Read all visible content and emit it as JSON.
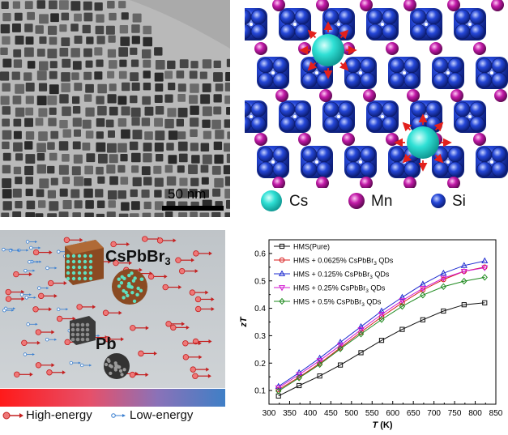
{
  "panel_a": {
    "scale_bar_label": "50 nm"
  },
  "panel_b": {
    "legend": [
      {
        "label": "Cs",
        "color": "#29d7cf"
      },
      {
        "label": "Mn",
        "color": "#c21aa8"
      },
      {
        "label": "Si",
        "color": "#2547d8"
      }
    ]
  },
  "panel_c": {
    "compound_label": "CsPbBr",
    "compound_subscript": "3",
    "element_label": "Pb",
    "legend_high": "High-energy",
    "legend_low": "Low-energy",
    "colors": {
      "high": "#e8262a",
      "low": "#3a7fd0",
      "bar_left": "#ff1a1a",
      "bar_right": "#3f7fc6"
    }
  },
  "chart_data": {
    "type": "line",
    "title": "",
    "xlabel_italic": "T",
    "xlabel_unit": " (K)",
    "ylabel_italic": "zT",
    "xlim": [
      300,
      850
    ],
    "ylim": [
      0.05,
      0.65
    ],
    "x_ticks": [
      "300",
      "350",
      "400",
      "450",
      "500",
      "550",
      "600",
      "650",
      "700",
      "750",
      "800",
      "850"
    ],
    "y_ticks": [
      "0.1",
      "0.2",
      "0.3",
      "0.4",
      "0.5",
      "0.6"
    ],
    "x": [
      323,
      373,
      423,
      473,
      523,
      573,
      623,
      673,
      723,
      773,
      823
    ],
    "legend_placement": "top-left",
    "series": [
      {
        "name": "HMS(Pure)",
        "marker": "square",
        "color": "#111111",
        "values": [
          0.08,
          0.118,
          0.153,
          0.193,
          0.238,
          0.283,
          0.323,
          0.358,
          0.39,
          0.413,
          0.42
        ]
      },
      {
        "name": "HMS + 0.0625% CsPbBr",
        "name_sub": "3",
        "name_tail": " QDs",
        "marker": "circle",
        "color": "#d81c1c",
        "values": [
          0.103,
          0.149,
          0.199,
          0.256,
          0.313,
          0.369,
          0.42,
          0.467,
          0.505,
          0.535,
          0.55
        ]
      },
      {
        "name": "HMS + 0.125% CsPbBr",
        "name_sub": "3",
        "name_tail": " QDs",
        "marker": "triangle-up",
        "color": "#1e2bd0",
        "values": [
          0.115,
          0.165,
          0.218,
          0.276,
          0.333,
          0.39,
          0.44,
          0.488,
          0.528,
          0.556,
          0.573
        ]
      },
      {
        "name": "HMS + 0.25% CsPbBr",
        "name_sub": "3",
        "name_tail": " QDs",
        "marker": "triangle-down",
        "color": "#d21ad2",
        "values": [
          0.11,
          0.158,
          0.209,
          0.265,
          0.322,
          0.378,
          0.428,
          0.473,
          0.51,
          0.535,
          0.548
        ]
      },
      {
        "name": "HMS + 0.5% CsPbBr",
        "name_sub": "3",
        "name_tail": " QDs",
        "marker": "diamond",
        "color": "#1f8a1f",
        "values": [
          0.098,
          0.146,
          0.195,
          0.252,
          0.306,
          0.359,
          0.407,
          0.448,
          0.479,
          0.499,
          0.513
        ]
      }
    ]
  }
}
